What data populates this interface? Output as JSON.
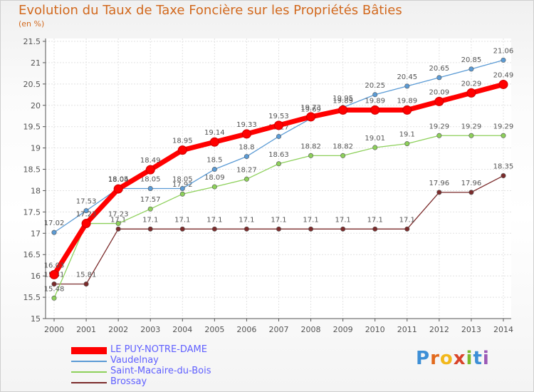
{
  "title": "Evolution du Taux de Taxe Foncière sur les Propriétés Bâties",
  "unit_label": "(en %)",
  "brand": [
    "P",
    "r",
    "o",
    "x",
    "i",
    "t",
    "i"
  ],
  "chart_data": {
    "type": "line",
    "title": "Evolution du Taux de Taxe Foncière sur les Propriétés Bâties",
    "ylabel": "(en %)",
    "xlabel": "",
    "x": [
      2000,
      2001,
      2002,
      2003,
      2004,
      2005,
      2006,
      2007,
      2008,
      2009,
      2010,
      2011,
      2012,
      2013,
      2014
    ],
    "ylim": [
      15,
      21.5
    ],
    "yticks": [
      15,
      15.5,
      16,
      16.5,
      17,
      17.5,
      18,
      18.5,
      19,
      19.5,
      20,
      20.5,
      21,
      21.5
    ],
    "grid": true,
    "legend_position": "bottom-left",
    "series": [
      {
        "name": "LE PUY-NOTRE-DAME",
        "color": "#ff0000",
        "labels": [
          "16.03",
          "17.23",
          "18.04",
          "18.49",
          "18.95",
          "19.14",
          "19.33",
          "19.53",
          "19.73",
          "19.89",
          "19.89",
          "19.89",
          "20.09",
          "20.29",
          "20.49"
        ],
        "values": [
          16.03,
          17.23,
          18.04,
          18.49,
          18.95,
          19.14,
          19.33,
          19.53,
          19.73,
          19.89,
          19.89,
          19.89,
          20.09,
          20.29,
          20.49
        ]
      },
      {
        "name": "Vaudelnay",
        "color": "#5b9bd5",
        "labels": [
          "17.02",
          "17.53",
          "18.05",
          "18.05",
          "18.05",
          "18.5",
          "18.8",
          "19.27",
          "19.69",
          "19.95",
          "20.25",
          "20.45",
          "20.65",
          "20.85",
          "21.06"
        ],
        "values": [
          17.02,
          17.53,
          18.05,
          18.05,
          18.05,
          18.5,
          18.8,
          19.27,
          19.69,
          19.95,
          20.25,
          20.45,
          20.65,
          20.85,
          21.06
        ]
      },
      {
        "name": "Saint-Macaire-du-Bois",
        "color": "#8dd05a",
        "labels": [
          "15.48",
          "17.23",
          "17.23",
          "17.57",
          "17.92",
          "18.09",
          "18.27",
          "18.63",
          "18.82",
          "18.82",
          "19.01",
          "19.1",
          "19.29",
          "19.29",
          "19.29"
        ],
        "values": [
          15.48,
          17.23,
          17.23,
          17.57,
          17.92,
          18.09,
          18.27,
          18.63,
          18.82,
          18.82,
          19.01,
          19.1,
          19.29,
          19.29,
          19.29
        ]
      },
      {
        "name": "Brossay",
        "color": "#7b2b2b",
        "labels": [
          "15.81",
          "15.81",
          "17.1",
          "17.1",
          "17.1",
          "17.1",
          "17.1",
          "17.1",
          "17.1",
          "17.1",
          "17.1",
          "17.1",
          "17.96",
          "17.96",
          "18.35"
        ],
        "values": [
          15.81,
          15.81,
          17.1,
          17.1,
          17.1,
          17.1,
          17.1,
          17.1,
          17.1,
          17.1,
          17.1,
          17.1,
          17.96,
          17.96,
          18.35
        ]
      }
    ]
  }
}
